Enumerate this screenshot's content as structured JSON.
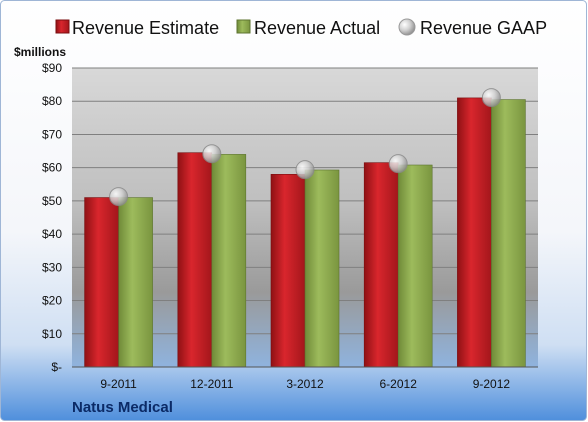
{
  "chart_data": {
    "type": "bar",
    "categories": [
      "9-2011",
      "12-2011",
      "3-2012",
      "6-2012",
      "9-2012"
    ],
    "series": [
      {
        "name": "Revenue Estimate",
        "type": "bar",
        "color": "#cc2228",
        "values": [
          51,
          64.5,
          58,
          61.5,
          81
        ]
      },
      {
        "name": "Revenue Actual",
        "type": "bar",
        "color": "#8fae4e",
        "values": [
          51,
          64,
          59.3,
          60.8,
          80.5
        ]
      },
      {
        "name": "Revenue GAAP",
        "type": "marker",
        "color": "#c8c8c8",
        "values": [
          51.3,
          64.2,
          59.4,
          61.2,
          81.1
        ]
      }
    ],
    "ylabel": "$millions",
    "yticks": [
      "$-",
      "$10",
      "$20",
      "$30",
      "$40",
      "$50",
      "$60",
      "$70",
      "$80",
      "$90"
    ],
    "ylim": [
      0,
      90
    ],
    "grid": true,
    "legend_position": "top",
    "company": "Natus Medical"
  }
}
